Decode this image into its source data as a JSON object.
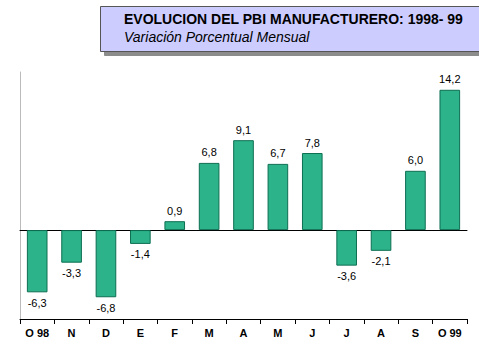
{
  "chart_data": {
    "type": "bar",
    "title": "EVOLUCION DEL PBI MANUFACTURERO: 1998- 99",
    "subtitle": "Variación Porcentual Mensual",
    "categories": [
      "O 98",
      "N",
      "D",
      "E",
      "F",
      "M",
      "A",
      "M",
      "J",
      "J",
      "A",
      "S",
      "O 99"
    ],
    "values": [
      -6.3,
      -3.3,
      -6.8,
      -1.4,
      0.9,
      6.8,
      9.1,
      6.7,
      7.8,
      -3.6,
      -2.1,
      6.0,
      14.2
    ],
    "value_labels": [
      "-6,3",
      "-3,3",
      "-6,8",
      "-1,4",
      "0,9",
      "6,8",
      "9,1",
      "6,7",
      "7,8",
      "-3,6",
      "-2,1",
      "6,0",
      "14,2"
    ],
    "color": "#2db38a",
    "ylim": [
      -9,
      16
    ],
    "grid": false,
    "data_labels": true,
    "tick_labels": "x"
  }
}
